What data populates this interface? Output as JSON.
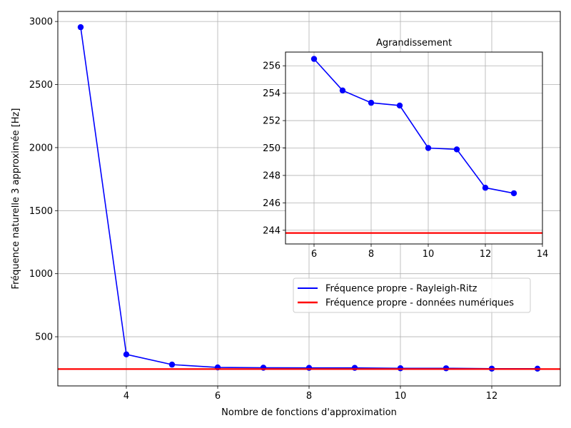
{
  "chart_data": [
    {
      "type": "line",
      "title": "",
      "xlabel": "Nombre de fonctions d'approximation",
      "ylabel": "Fréquence naturelle 3 approximée [Hz]",
      "xlim": [
        2.5,
        13.5
      ],
      "ylim": [
        110,
        3080
      ],
      "xticks": [
        4,
        6,
        8,
        10,
        12
      ],
      "yticks": [
        500,
        1000,
        1500,
        2000,
        2500,
        3000
      ],
      "grid": true,
      "legend_position": "center-right",
      "series": [
        {
          "name": "Fréquence propre - Rayleigh-Ritz",
          "color": "#0000ff",
          "marker": "circle",
          "x": [
            3,
            4,
            5,
            6,
            7,
            8,
            9,
            10,
            11,
            12,
            13
          ],
          "values": [
            2955,
            360,
            279,
            256.5,
            254.2,
            253.3,
            253.1,
            250.0,
            249.9,
            247.1,
            246.7
          ]
        },
        {
          "name": "Fréquence propre - données numériques",
          "color": "#ff0000",
          "type": "hline",
          "value": 243.8
        }
      ]
    },
    {
      "type": "line",
      "title": "Agrandissement",
      "xlabel": "",
      "ylabel": "",
      "xlim": [
        5,
        14
      ],
      "ylim": [
        243,
        257
      ],
      "xticks": [
        6,
        8,
        10,
        12,
        14
      ],
      "yticks": [
        244,
        246,
        248,
        250,
        252,
        254,
        256
      ],
      "grid": true,
      "series": [
        {
          "color": "#0000ff",
          "marker": "circle",
          "x": [
            6,
            7,
            8,
            9,
            10,
            11,
            12,
            13
          ],
          "values": [
            256.5,
            254.2,
            253.3,
            253.1,
            250.0,
            249.9,
            247.1,
            246.7
          ]
        },
        {
          "color": "#ff0000",
          "type": "hline",
          "value": 243.8
        }
      ]
    }
  ]
}
